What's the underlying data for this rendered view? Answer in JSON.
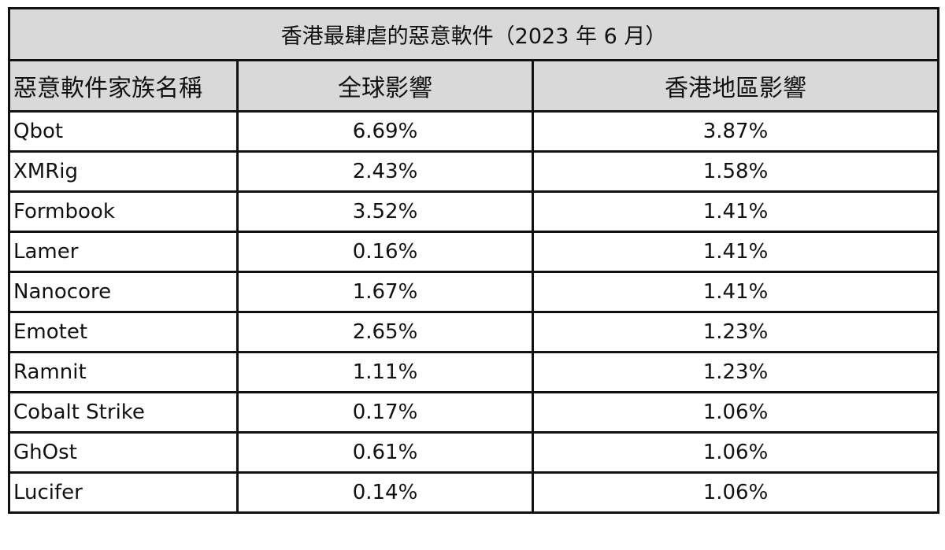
{
  "table": {
    "title": "香港最肆虐的惡意軟件（2023 年 6 月）",
    "header": [
      "惡意軟件家族名稱",
      "全球影響",
      "香港地區影響"
    ],
    "rows": [
      [
        "Qbot",
        "6.69%",
        "3.87%"
      ],
      [
        "XMRig",
        "2.43%",
        "1.58%"
      ],
      [
        "Formbook",
        "3.52%",
        "1.41%"
      ],
      [
        "Lamer",
        "0.16%",
        "1.41%"
      ],
      [
        "Nanocore",
        "1.67%",
        "1.41%"
      ],
      [
        "Emotet",
        "2.65%",
        "1.23%"
      ],
      [
        "Ramnit",
        "1.11%",
        "1.23%"
      ],
      [
        "Cobalt Strike",
        "0.17%",
        "1.06%"
      ],
      [
        "GhOst",
        "0.61%",
        "1.06%"
      ],
      [
        "Lucifer",
        "0.14%",
        "1.06%"
      ]
    ]
  }
}
